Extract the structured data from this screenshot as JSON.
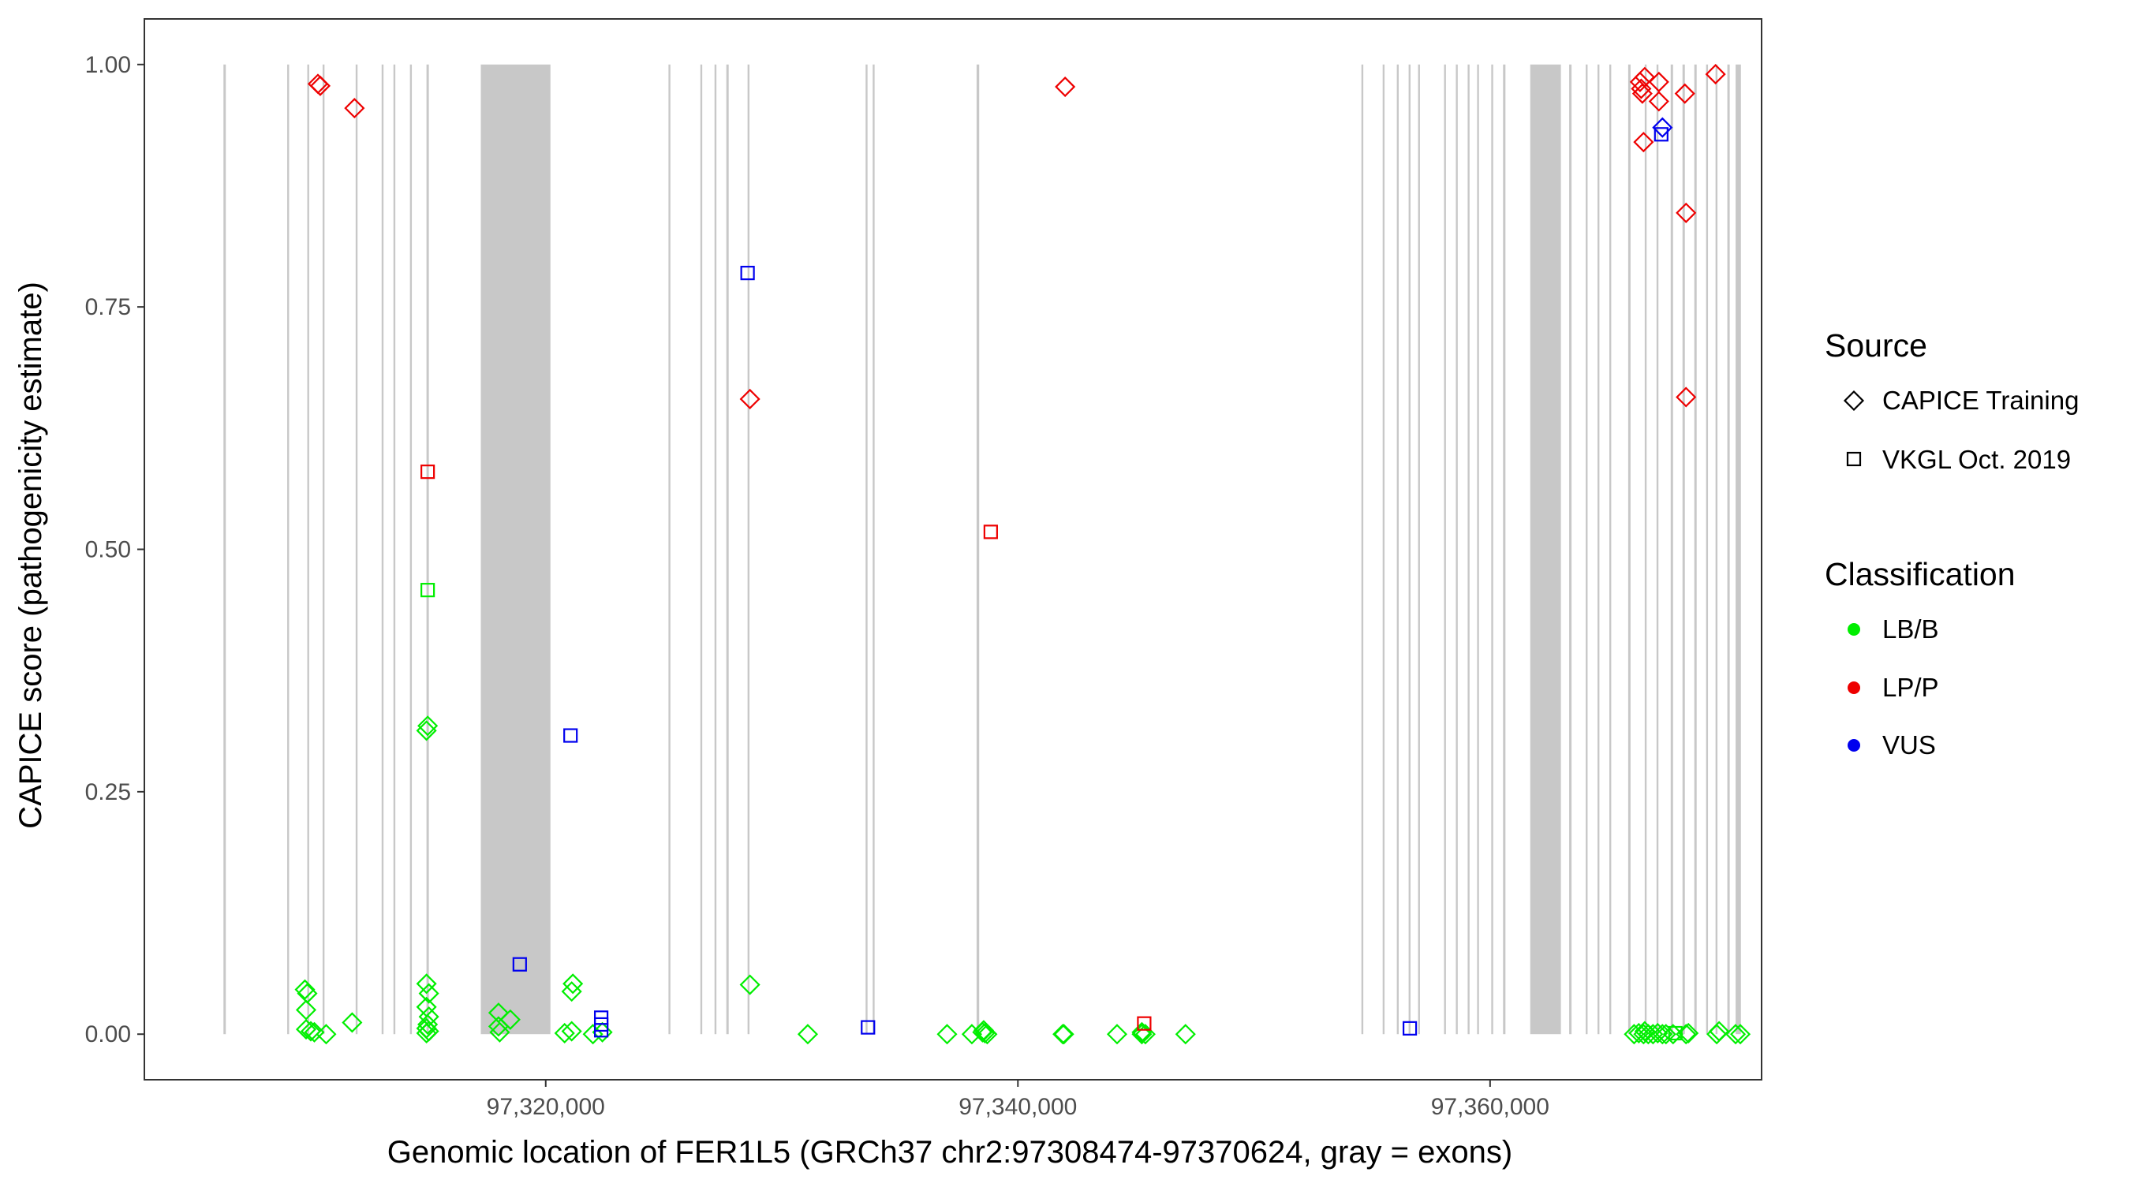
{
  "chart_data": {
    "type": "scatter",
    "xlabel": "Genomic location of FER1L5 (GRCh37 chr2:97308474-97370624, gray = exons)",
    "ylabel": "CAPICE score (pathogenicity estimate)",
    "xlim": [
      97303000,
      97371500
    ],
    "ylim": [
      -0.047,
      1.047
    ],
    "x_ticks": [
      97320000,
      97340000,
      97360000
    ],
    "x_tick_labels": [
      "97,320,000",
      "97,340,000",
      "97,360,000"
    ],
    "y_ticks": [
      0,
      0.25,
      0.5,
      0.75,
      1
    ],
    "y_tick_labels": [
      "0.00",
      "0.25",
      "0.50",
      "0.75",
      "1.00"
    ],
    "grid": false,
    "exon_color": "#c8c8c8",
    "exons": [
      [
        97306350,
        97306450
      ],
      [
        97309050,
        97309120
      ],
      [
        97309900,
        97309970
      ],
      [
        97310550,
        97310620
      ],
      [
        97311950,
        97312010
      ],
      [
        97313050,
        97313120
      ],
      [
        97313550,
        97313630
      ],
      [
        97314250,
        97314330
      ],
      [
        97314950,
        97315050
      ],
      [
        97317250,
        97320200
      ],
      [
        97325200,
        97325260
      ],
      [
        97326550,
        97326630
      ],
      [
        97327150,
        97327230
      ],
      [
        97327650,
        97327750
      ],
      [
        97328550,
        97328610
      ],
      [
        97333550,
        97333620
      ],
      [
        97333850,
        97333920
      ],
      [
        97338250,
        97338360
      ],
      [
        97354550,
        97354620
      ],
      [
        97355450,
        97355520
      ],
      [
        97356050,
        97356130
      ],
      [
        97356550,
        97356630
      ],
      [
        97356950,
        97357030
      ],
      [
        97358050,
        97358120
      ],
      [
        97358550,
        97358620
      ],
      [
        97359050,
        97359130
      ],
      [
        97359450,
        97359520
      ],
      [
        97360050,
        97360130
      ],
      [
        97360550,
        97360650
      ],
      [
        97361700,
        97363000
      ],
      [
        97363350,
        97363450
      ],
      [
        97364050,
        97364130
      ],
      [
        97364550,
        97364630
      ],
      [
        97365050,
        97365130
      ],
      [
        97365850,
        97365950
      ],
      [
        97366550,
        97366630
      ],
      [
        97367050,
        97367130
      ],
      [
        97367650,
        97367750
      ],
      [
        97368150,
        97368250
      ],
      [
        97368650,
        97368750
      ],
      [
        97369150,
        97369230
      ],
      [
        97369550,
        97369630
      ],
      [
        97370050,
        97370150
      ],
      [
        97370400,
        97370624
      ]
    ],
    "legend": {
      "position": "right",
      "source": {
        "title": "Source",
        "items": [
          {
            "label": "CAPICE Training",
            "shape": "diamond"
          },
          {
            "label": "VKGL Oct. 2019",
            "shape": "square"
          }
        ]
      },
      "classification": {
        "title": "Classification",
        "items": [
          {
            "label": "LB/B",
            "color": "#00ee00"
          },
          {
            "label": "LP/P",
            "color": "#ee0000"
          },
          {
            "label": "VUS",
            "color": "#0000ee"
          }
        ]
      }
    },
    "series": [
      {
        "source": "CAPICE Training",
        "classification": "LB/B",
        "points": [
          [
            97309800,
            0.046
          ],
          [
            97309900,
            0.042
          ],
          [
            97309850,
            0.025
          ],
          [
            97309850,
            0.005
          ],
          [
            97310050,
            0.003
          ],
          [
            97310200,
            0.002
          ],
          [
            97310700,
            0.0
          ],
          [
            97311800,
            0.012
          ],
          [
            97314950,
            0.052
          ],
          [
            97315050,
            0.042
          ],
          [
            97314950,
            0.028
          ],
          [
            97315050,
            0.018
          ],
          [
            97315000,
            0.01
          ],
          [
            97314950,
            0.006
          ],
          [
            97315050,
            0.003
          ],
          [
            97314950,
            0.001
          ],
          [
            97315000,
            0.318
          ],
          [
            97314950,
            0.313
          ],
          [
            97318000,
            0.022
          ],
          [
            97318500,
            0.015
          ],
          [
            97318000,
            0.008
          ],
          [
            97318050,
            0.002
          ],
          [
            97320800,
            0.001
          ],
          [
            97321100,
            0.003
          ],
          [
            97321150,
            0.052
          ],
          [
            97321100,
            0.044
          ],
          [
            97322000,
            0.0
          ],
          [
            97322400,
            0.002
          ],
          [
            97328650,
            0.051
          ],
          [
            97331100,
            0.0
          ],
          [
            97337000,
            0.0
          ],
          [
            97338050,
            0.0
          ],
          [
            97338500,
            0.002
          ],
          [
            97338600,
            0.001
          ],
          [
            97338700,
            0.0
          ],
          [
            97338550,
            0.004
          ],
          [
            97341900,
            0.0
          ],
          [
            97341950,
            0.0
          ],
          [
            97344200,
            0.0
          ],
          [
            97345250,
            0.0
          ],
          [
            97345400,
            0.0
          ],
          [
            97345250,
            0.002
          ],
          [
            97347100,
            0.0
          ],
          [
            97366100,
            0.0
          ],
          [
            97366300,
            0.001
          ],
          [
            97366500,
            0.0
          ],
          [
            97366550,
            0.003
          ],
          [
            97366700,
            0.0
          ],
          [
            97366900,
            0.0
          ],
          [
            97367100,
            0.001
          ],
          [
            97367300,
            0.0
          ],
          [
            97367450,
            0.0
          ],
          [
            97367750,
            0.0
          ],
          [
            97368300,
            0.0
          ],
          [
            97368400,
            0.001
          ],
          [
            97369600,
            0.0
          ],
          [
            97369700,
            0.003
          ],
          [
            97370400,
            0.0
          ],
          [
            97370600,
            0.0
          ]
        ]
      },
      {
        "source": "CAPICE Training",
        "classification": "LP/P",
        "points": [
          [
            97310350,
            0.98
          ],
          [
            97310450,
            0.978
          ],
          [
            97311900,
            0.955
          ],
          [
            97342000,
            0.977
          ],
          [
            97328650,
            0.655
          ],
          [
            97366350,
            0.982
          ],
          [
            97366400,
            0.975
          ],
          [
            97366450,
            0.97
          ],
          [
            97366550,
            0.987
          ],
          [
            97366500,
            0.92
          ],
          [
            97367150,
            0.982
          ],
          [
            97367150,
            0.962
          ],
          [
            97368250,
            0.97
          ],
          [
            97368300,
            0.847
          ],
          [
            97368300,
            0.657
          ],
          [
            97369550,
            0.99
          ]
        ]
      },
      {
        "source": "CAPICE Training",
        "classification": "VUS",
        "points": [
          [
            97367300,
            0.935
          ]
        ]
      },
      {
        "source": "VKGL Oct. 2019",
        "classification": "LB/B",
        "points": [
          [
            97315000,
            0.458
          ],
          [
            97367850,
            0.001
          ]
        ]
      },
      {
        "source": "VKGL Oct. 2019",
        "classification": "LP/P",
        "points": [
          [
            97315000,
            0.58
          ],
          [
            97338850,
            0.518
          ],
          [
            97345350,
            0.011
          ]
        ]
      },
      {
        "source": "VKGL Oct. 2019",
        "classification": "VUS",
        "points": [
          [
            97328550,
            0.785
          ],
          [
            97318900,
            0.072
          ],
          [
            97321050,
            0.308
          ],
          [
            97322350,
            0.017
          ],
          [
            97322350,
            0.01
          ],
          [
            97322350,
            0.004
          ],
          [
            97333650,
            0.007
          ],
          [
            97356600,
            0.006
          ],
          [
            97367250,
            0.928
          ]
        ]
      }
    ]
  }
}
